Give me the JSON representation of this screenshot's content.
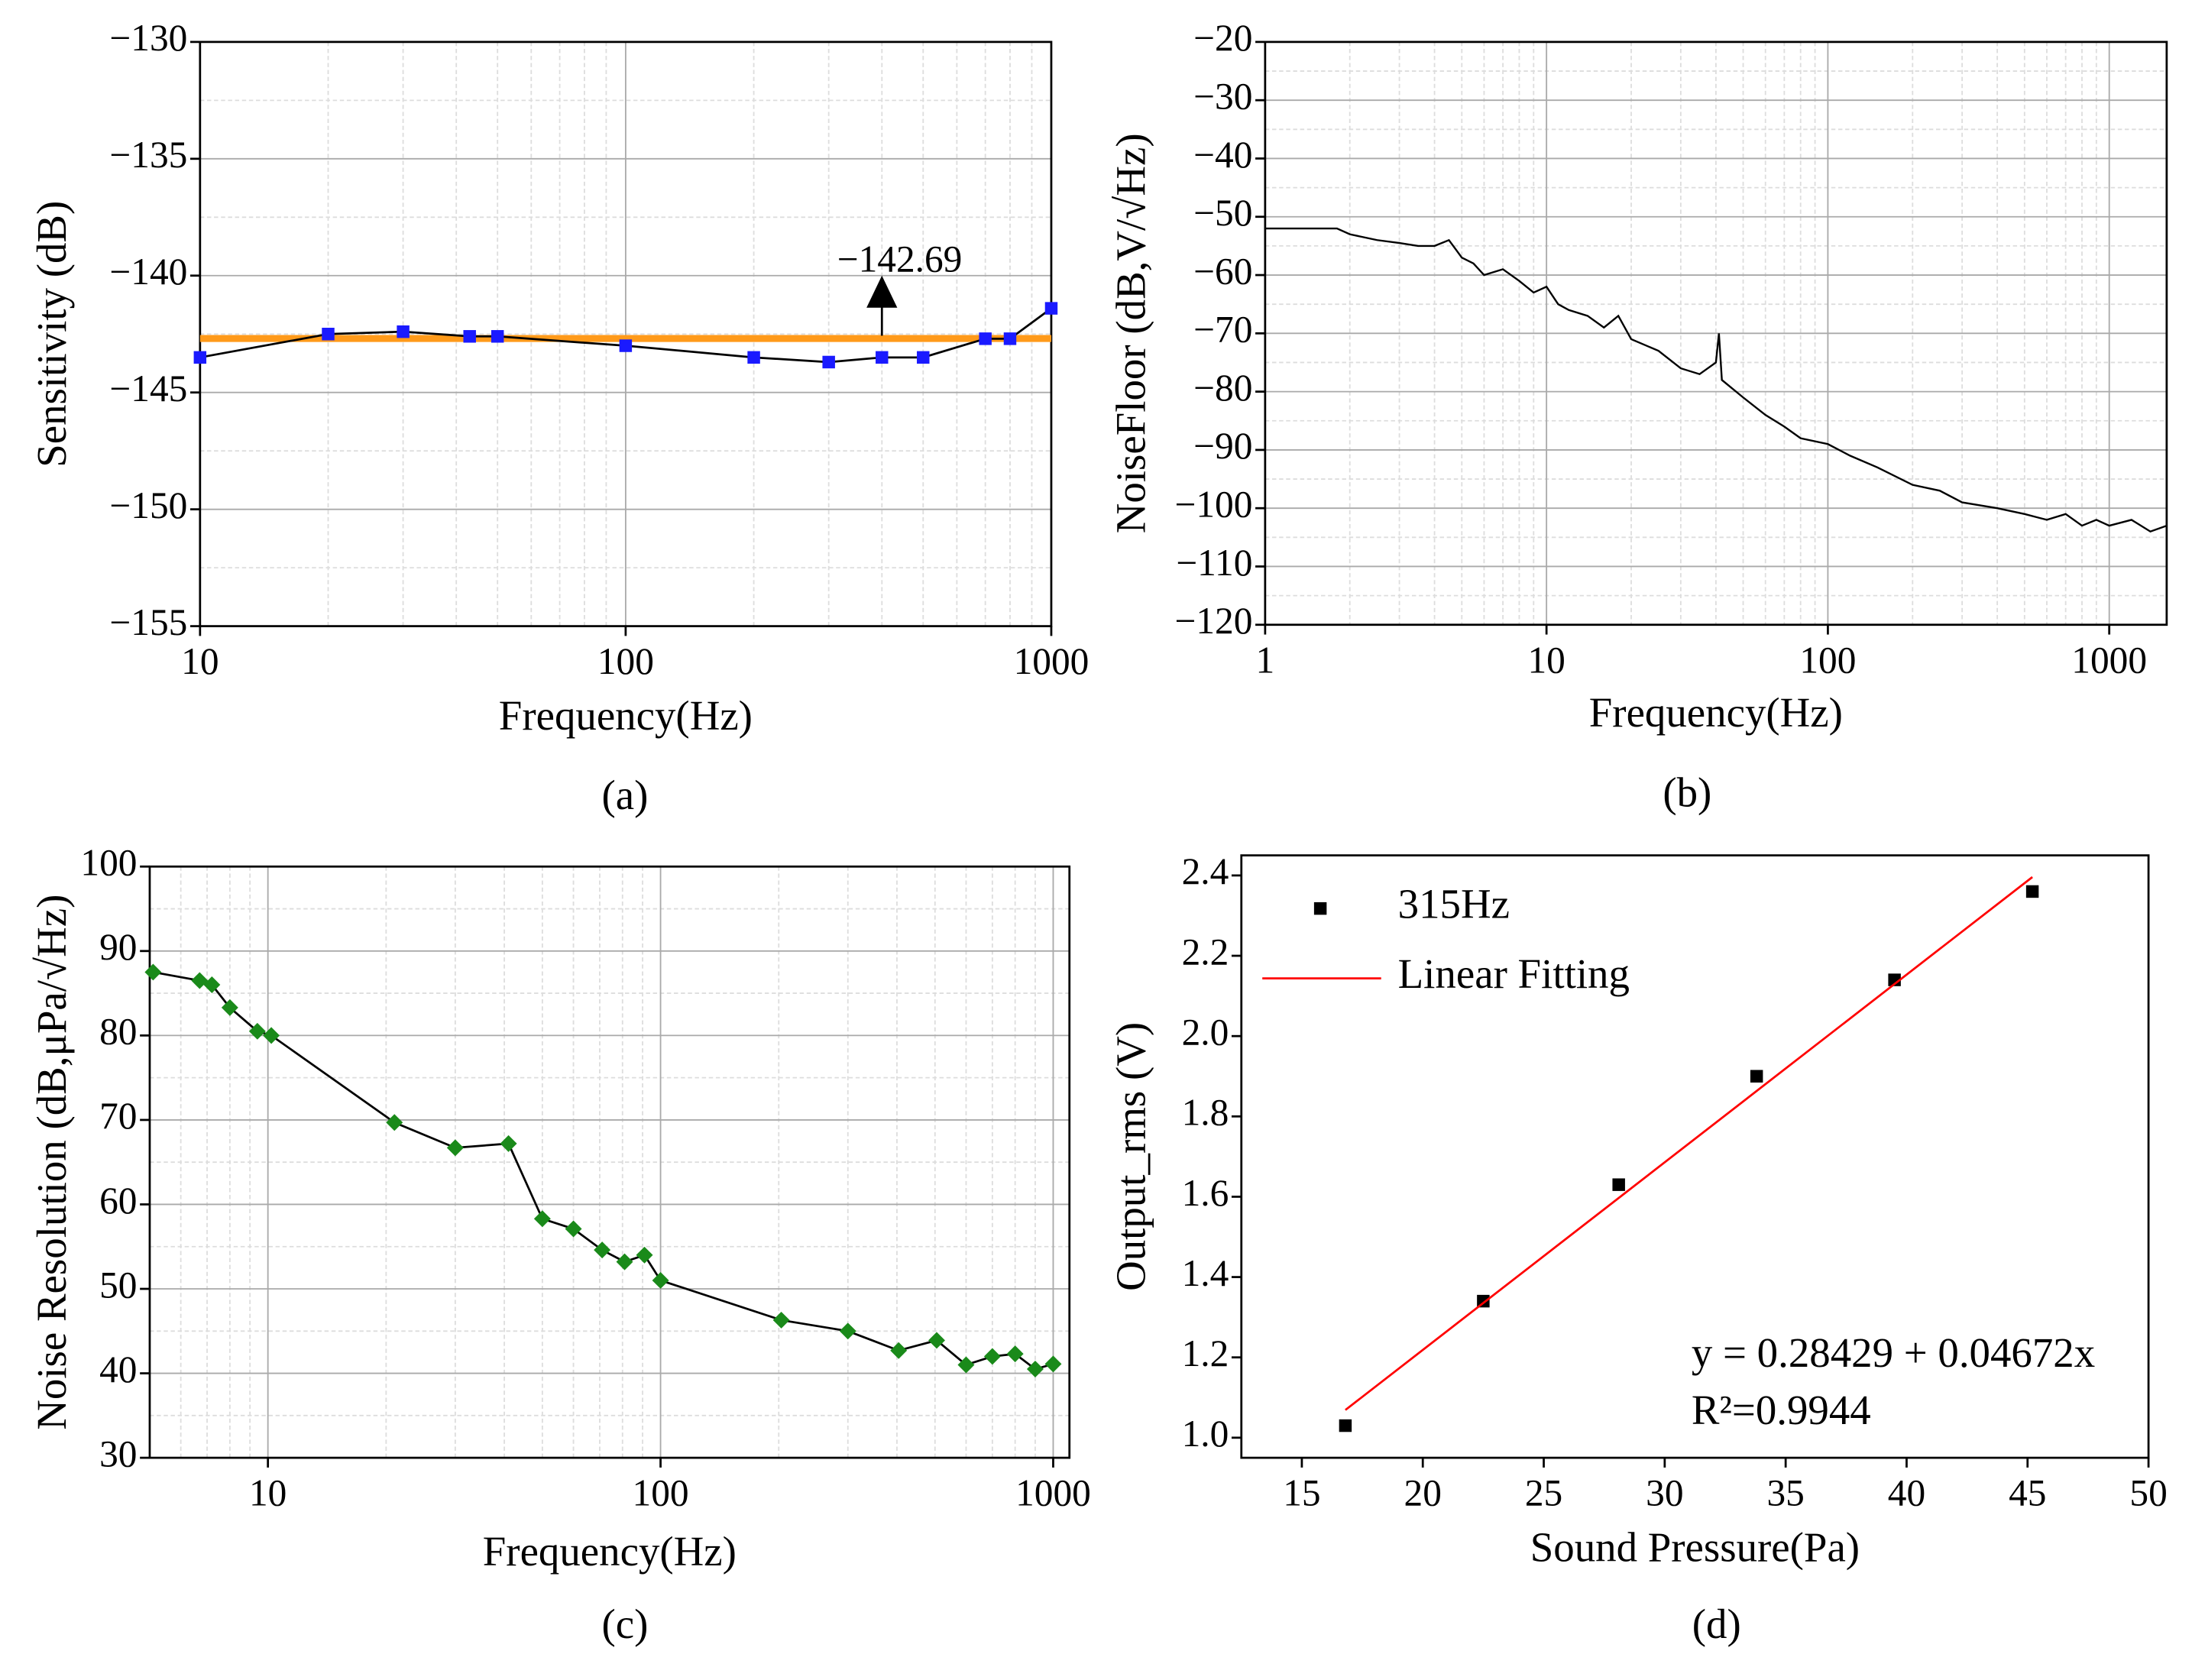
{
  "chart_data": [
    {
      "type": "line",
      "panel_label": "(a)",
      "x_label": "Frequency(Hz)",
      "y_label": "Sensitivity (dB)",
      "xscale": "log",
      "xlim": [
        10,
        1000
      ],
      "xticks": [
        10,
        100,
        1000
      ],
      "ylim": [
        -155,
        -130
      ],
      "yticks": [
        {
          "value": -155,
          "label": "−155"
        },
        {
          "value": -150,
          "label": "−150"
        },
        {
          "value": -145,
          "label": "−145"
        },
        {
          "value": -140,
          "label": "−140"
        },
        {
          "value": -135,
          "label": "−135"
        },
        {
          "value": -130,
          "label": "−130"
        }
      ],
      "grid": true,
      "series": [
        {
          "color": "#1a1aff",
          "line_color": "#000000",
          "marker": "square",
          "x": [
            10,
            20,
            30,
            43,
            50,
            100,
            200,
            300,
            400,
            500,
            700,
            800,
            1000
          ],
          "values": [
            -143.5,
            -142.5,
            -142.4,
            -142.6,
            -142.6,
            -143.0,
            -143.5,
            -143.7,
            -143.5,
            -143.5,
            -142.7,
            -142.7,
            -141.4
          ]
        }
      ],
      "reference_line": {
        "value": -142.69,
        "label": "−142.69",
        "color": "#ff9a1a",
        "annotation_x": 400
      }
    },
    {
      "type": "line",
      "panel_label": "(b)",
      "x_label": "Frequency(Hz)",
      "y_label": "NoiseFloor (dB,V/√Hz)",
      "xscale": "log",
      "xlim": [
        1,
        1600
      ],
      "xticks": [
        1,
        10,
        100,
        1000
      ],
      "ylim": [
        -120,
        -20
      ],
      "yticks": [
        {
          "value": -120,
          "label": "−120"
        },
        {
          "value": -110,
          "label": "−110"
        },
        {
          "value": -100,
          "label": "−100"
        },
        {
          "value": -90,
          "label": "−90"
        },
        {
          "value": -80,
          "label": "−80"
        },
        {
          "value": -70,
          "label": "−70"
        },
        {
          "value": -60,
          "label": "−60"
        },
        {
          "value": -50,
          "label": "−50"
        },
        {
          "value": -40,
          "label": "−40"
        },
        {
          "value": -30,
          "label": "−30"
        },
        {
          "value": -20,
          "label": "−20"
        }
      ],
      "grid": true,
      "series": [
        {
          "line_color": "#000000",
          "x": [
            1,
            1.5,
            1.8,
            2,
            2.5,
            3,
            3.5,
            4,
            4.5,
            5,
            5.5,
            6,
            7,
            8,
            9,
            10,
            11,
            12,
            14,
            16,
            18,
            20,
            25,
            30,
            35,
            40,
            41,
            42,
            50,
            60,
            70,
            80,
            100,
            120,
            150,
            200,
            250,
            300,
            400,
            500,
            600,
            700,
            800,
            900,
            1000,
            1200,
            1400,
            1600
          ],
          "values": [
            -52,
            -52,
            -52,
            -53,
            -54,
            -54.5,
            -55,
            -55,
            -54,
            -57,
            -58,
            -60,
            -59,
            -61,
            -63,
            -62,
            -65,
            -66,
            -67,
            -69,
            -67,
            -71,
            -73,
            -76,
            -77,
            -75,
            -70,
            -78,
            -81,
            -84,
            -86,
            -88,
            -89,
            -91,
            -93,
            -96,
            -97,
            -99,
            -100,
            -101,
            -102,
            -101,
            -103,
            -102,
            -103,
            -102,
            -104,
            -103
          ]
        }
      ]
    },
    {
      "type": "line",
      "panel_label": "(c)",
      "x_label": "Frequency(Hz)",
      "y_label": "Noise Resolution (dB,μPa/√Hz)",
      "xscale": "log",
      "xlim": [
        5,
        1100
      ],
      "xticks": [
        10,
        100,
        1000
      ],
      "ylim": [
        30,
        100
      ],
      "yticks": [
        30,
        40,
        50,
        60,
        70,
        80,
        90,
        100
      ],
      "grid": true,
      "series": [
        {
          "color": "#1a8a1a",
          "line_color": "#000000",
          "marker": "diamond",
          "x": [
            5.1,
            6.7,
            7.2,
            8,
            9.4,
            10.2,
            21,
            30,
            41,
            50,
            60,
            71,
            81,
            91,
            100,
            203,
            300,
            404,
            505,
            600,
            700,
            800,
            900,
            1000
          ],
          "values": [
            87.5,
            86.5,
            86,
            83.3,
            80.5,
            80,
            69.7,
            66.7,
            67.2,
            58.3,
            57.1,
            54.6,
            53.2,
            54,
            51,
            46.3,
            45,
            42.7,
            43.9,
            41,
            42,
            42.3,
            40.5,
            41.1
          ]
        }
      ]
    },
    {
      "type": "scatter",
      "panel_label": "(d)",
      "x_label": "Sound Pressure(Pa)",
      "y_label": "Output_rms (V)",
      "xscale": "linear",
      "xlim": [
        12.5,
        50
      ],
      "xticks": [
        15,
        20,
        25,
        30,
        35,
        40,
        45,
        50
      ],
      "ylim": [
        0.95,
        2.45
      ],
      "yticks": [
        {
          "value": 1.0,
          "label": "1.0"
        },
        {
          "value": 1.2,
          "label": "1.2"
        },
        {
          "value": 1.4,
          "label": "1.4"
        },
        {
          "value": 1.6,
          "label": "1.6"
        },
        {
          "value": 1.8,
          "label": "1.8"
        },
        {
          "value": 2.0,
          "label": "2.0"
        },
        {
          "value": 2.2,
          "label": "2.2"
        },
        {
          "value": 2.4,
          "label": "2.4"
        }
      ],
      "grid": false,
      "legend": "upper left",
      "series": [
        {
          "name": "315Hz",
          "color": "#000000",
          "marker": "square",
          "x": [
            16.8,
            22.5,
            28.1,
            33.8,
            39.5,
            45.2
          ],
          "values": [
            1.03,
            1.34,
            1.63,
            1.9,
            2.14,
            2.36
          ]
        },
        {
          "name": "Linear Fitting",
          "line_color": "#ff0000",
          "x": [
            16.8,
            45.2
          ],
          "values": [
            1.069,
            2.396
          ]
        }
      ],
      "equation": "y = 0.28429 + 0.04672x",
      "r_squared": "R²=0.9944"
    }
  ]
}
